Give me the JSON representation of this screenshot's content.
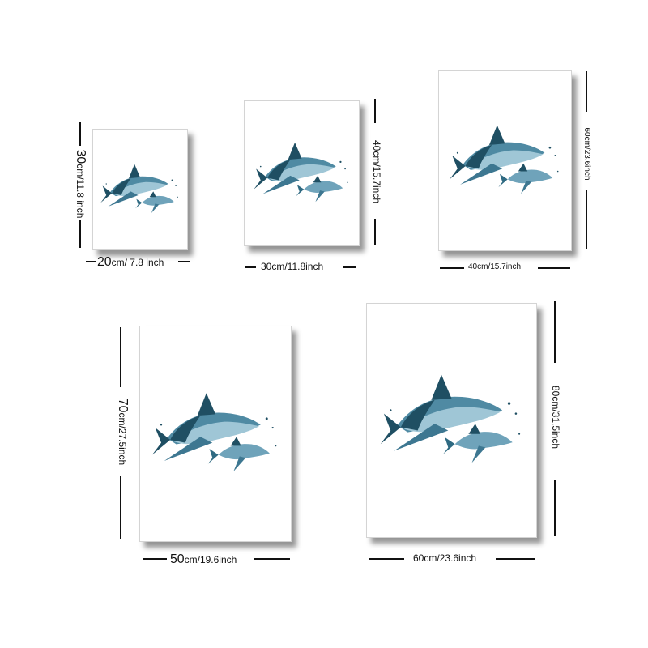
{
  "icon": "shark-watercolor-icon",
  "colors": {
    "shark_dark": "#1f4f63",
    "shark_mid": "#4f8aa3",
    "shark_light": "#9fc6d6",
    "frame_shadow": "#555555"
  },
  "sizes": [
    {
      "width_num": "20",
      "width_unit": "cm/ 7.8 inch",
      "height_num": "30",
      "height_unit": "cm/11.8 inch"
    },
    {
      "width_num": "",
      "width_unit": "30cm/11.8inch",
      "height_num": "",
      "height_unit": "40cm/15.7inch"
    },
    {
      "width_num": "",
      "width_unit": "40cm/15.7inch",
      "height_num": "",
      "height_unit": "60cm/23.6inch"
    },
    {
      "width_num": "50",
      "width_unit": "cm/19.6inch",
      "height_num": "70",
      "height_unit": "cm/27.5inch"
    },
    {
      "width_num": "",
      "width_unit": "60cm/23.6inch",
      "height_num": "",
      "height_unit": "80cm/31.5inch"
    }
  ]
}
